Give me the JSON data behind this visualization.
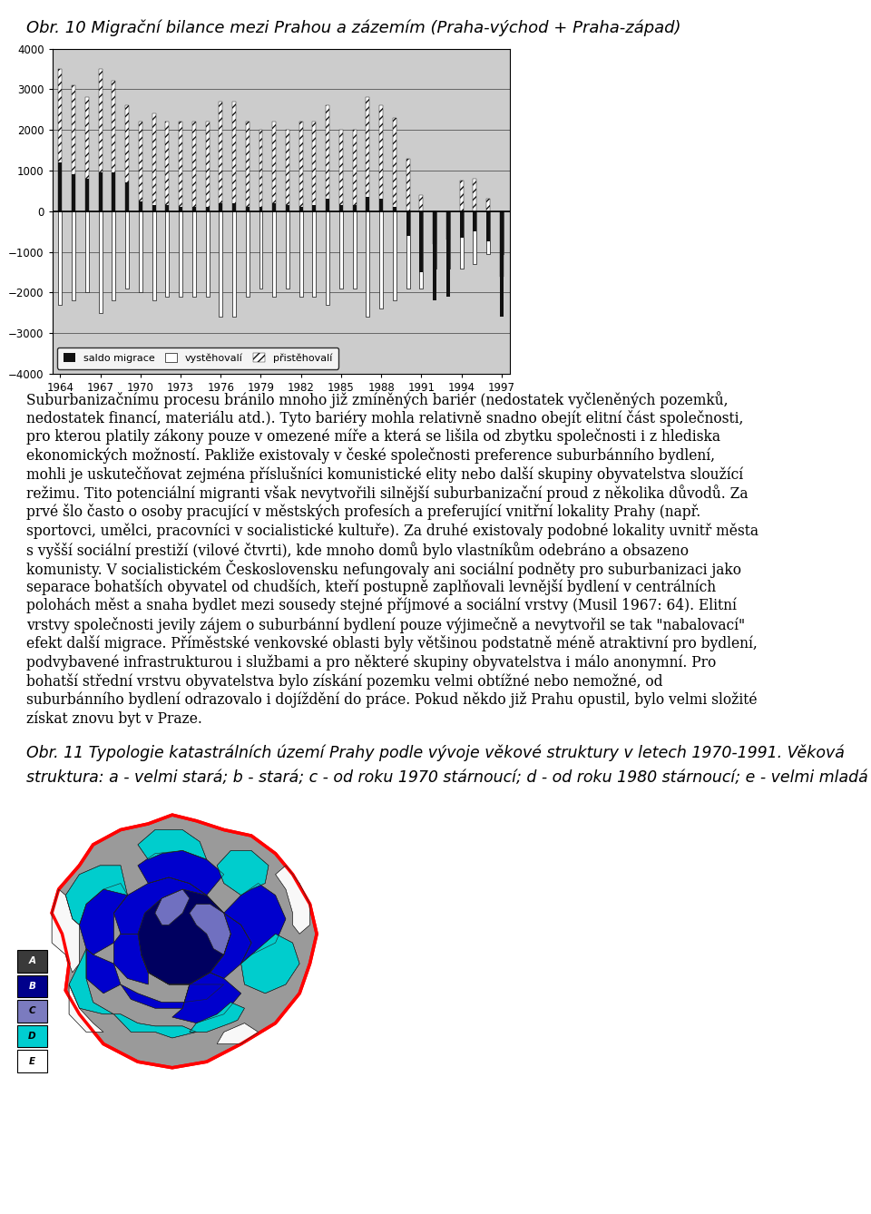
{
  "title1": "Obr. 10 Migrační bilance mezi Prahou a zázemím (Praha-východ + Praha-západ)",
  "title2_line1": "Obr. 11 Typologie katastrálních území Prahy podle vývoje věkové struktury v letech 1970-1991. Věková",
  "title2_line2": "struktura: a - velmi stará; b - stará; c - od roku 1970 stárnoucí; d - od roku 1980 stárnoucí; e - velmi mladá",
  "paragraph1": "Suburbanizačnímu procesu bránilo mnoho již zmíněných bariér (nedostatek vyčleněných pozemků, nedostatek financí, materiálu atd.). Tyto bariéry mohla relativně snadno obejít elitní část společnosti, pro kterou platily zákony pouze v omezené míře a která se lišila od zbytku společnosti i z hlediska ekonomických možností. Pakliže existovaly v české společnosti preference suburbánního bydlení, mohli je uskutečňovat zejména příslušníci komunistické elity nebo další skupiny obyvatelstva sloužící režimu. Tito potenciální migranti však nevytvořili silnější suburbanizační proud z několika důvodů. Za prvé šlo často o osoby pracující v městských profesích a preferující vnitřní lokality Prahy (např. sportovci, umělci, pracovníci v socialistické kultuře). Za druhé existovaly podobné lokality uvnitř města s vyšší sociální prestiží (vilové čtvrti), kde mnoho domů bylo vlastníkům odebráno a obsazeno komunisty. V socialistickém Československu nefungovaly ani sociální podněty pro suburbanizaci jako separace bohatších obyvatel od chudších, kteří postupně zaplňovali levnější bydlení v centrálních polohách měst a snaha bydlet mezi sousedy stejné příjmové a sociální vrstvy (Musil 1967: 64). Elitní vrstvy společnosti jevily zájem o suburbánní bydlení pouze výjimečně a nevytvořil se tak \"nabalovací\" efekt další migrace. Příměstské venkovské oblasti byly většinou podstatně méně atraktivní pro bydlení, podvybavené infrastrukturou i službami a pro některé skupiny obyvatelstva i málo anonymní. Pro bohatší střední vrstvu obyvatelstva bylo získání pozemku velmi obtížné nebo nemožné, od suburbánního bydlení odrazovalo i dojíždění do práce. Pokud někdo již Prahu opustil, bylo velmi složité získat znovu byt v Praze.",
  "chart_years": [
    1964,
    1965,
    1966,
    1967,
    1968,
    1969,
    1970,
    1971,
    1972,
    1973,
    1974,
    1975,
    1976,
    1977,
    1978,
    1979,
    1980,
    1981,
    1982,
    1983,
    1984,
    1985,
    1986,
    1987,
    1988,
    1989,
    1990,
    1991,
    1992,
    1993,
    1994,
    1995,
    1996,
    1997
  ],
  "saldo_migrace": [
    1200,
    900,
    800,
    950,
    950,
    700,
    250,
    150,
    150,
    100,
    100,
    100,
    200,
    200,
    100,
    100,
    200,
    150,
    100,
    150,
    300,
    150,
    150,
    350,
    300,
    100,
    -600,
    -1500,
    -2200,
    -2100,
    -650,
    -500,
    -750,
    -2600
  ],
  "vystehovali": [
    -2300,
    -2200,
    -2000,
    -2500,
    -2200,
    -1900,
    -2000,
    -2200,
    -2100,
    -2100,
    -2100,
    -2100,
    -2600,
    -2600,
    -2100,
    -1900,
    -2100,
    -1900,
    -2100,
    -2100,
    -2300,
    -1900,
    -1900,
    -2600,
    -2400,
    -2200,
    -1900,
    -1900,
    -1400,
    -1400,
    -1400,
    -1300,
    -1050,
    -1050
  ],
  "pristehovali": [
    3500,
    3100,
    2800,
    3500,
    3200,
    2600,
    2200,
    2400,
    2200,
    2200,
    2200,
    2200,
    2700,
    2700,
    2200,
    2000,
    2200,
    2000,
    2200,
    2200,
    2600,
    2000,
    2000,
    2800,
    2600,
    2300,
    1300,
    400,
    -800,
    -700,
    750,
    800,
    300,
    -1600
  ],
  "ylim": [
    -4000,
    4000
  ],
  "yticks": [
    -4000,
    -3000,
    -2000,
    -1000,
    0,
    1000,
    2000,
    3000,
    4000
  ],
  "xtick_labels": [
    "1964",
    "1967",
    "1970",
    "1973",
    "1976",
    "1979",
    "1982",
    "1985",
    "1988",
    "1991",
    "1994",
    "1997"
  ],
  "legend_labels": [
    "saldo migrace",
    "vystěhovalí",
    "přistěhovalí"
  ],
  "chart_bg_top": "#e8e8e8",
  "chart_bg_bottom": "#b0b0b0",
  "page_bg": "#ffffff",
  "text_color": "#000000",
  "font_size_title": 13,
  "font_size_text": 11.2,
  "font_size_caption": 12.5,
  "legend_entries": [
    [
      "A",
      "#3a3a3a"
    ],
    [
      "B",
      "#00008B"
    ],
    [
      "C",
      "#7b7bbf"
    ],
    [
      "D",
      "#00CED1"
    ],
    [
      "E",
      "#ffffff"
    ]
  ]
}
